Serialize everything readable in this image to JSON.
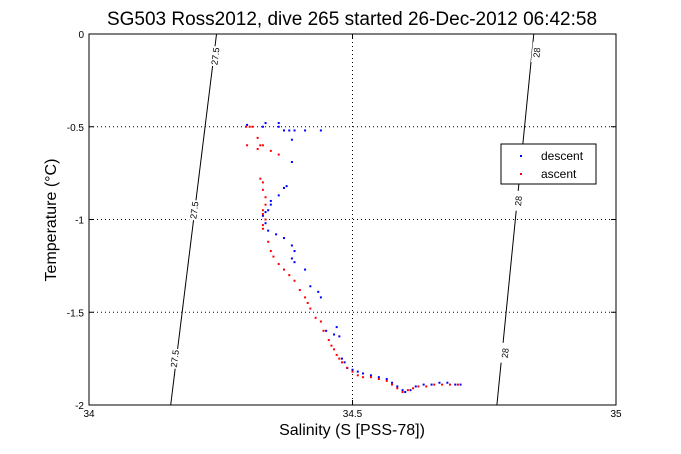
{
  "chart_data": {
    "type": "scatter",
    "title": "SG503 Ross2012, dive 265 started 26-Dec-2012 06:42:58",
    "xlabel": "Salinity (S [PSS-78])",
    "ylabel": "Temperature (°C)",
    "xlim": [
      34,
      35
    ],
    "ylim": [
      -2,
      0
    ],
    "xticks": [
      34,
      34.5,
      35
    ],
    "xtick_labels": [
      "34",
      "34.5",
      "35"
    ],
    "yticks": [
      0,
      -0.5,
      -1,
      -1.5,
      -2
    ],
    "ytick_labels": [
      "0",
      "-0.5",
      "-1",
      "-1.5",
      "-2"
    ],
    "grid": true,
    "legend_position": "right",
    "density_contours": [
      {
        "label": "27.5",
        "points": [
          [
            34.242,
            0
          ],
          [
            34.155,
            -2
          ]
        ],
        "label_positions": [
          [
            34.24,
            -0.12
          ],
          [
            34.2,
            -0.95
          ],
          [
            34.163,
            -1.75
          ]
        ]
      },
      {
        "label": "28",
        "points": [
          [
            34.844,
            0
          ],
          [
            34.774,
            -2
          ]
        ],
        "label_positions": [
          [
            34.85,
            -0.1
          ],
          [
            34.815,
            -0.9
          ],
          [
            34.79,
            -1.72
          ]
        ]
      }
    ],
    "series": [
      {
        "name": "descent",
        "color": "#0000ff",
        "points": [
          [
            34.3,
            -0.49
          ],
          [
            34.33,
            -0.5
          ],
          [
            34.335,
            -0.48
          ],
          [
            34.36,
            -0.48
          ],
          [
            34.36,
            -0.5
          ],
          [
            34.37,
            -0.52
          ],
          [
            34.38,
            -0.52
          ],
          [
            34.39,
            -0.52
          ],
          [
            34.41,
            -0.52
          ],
          [
            34.44,
            -0.52
          ],
          [
            34.385,
            -0.57
          ],
          [
            34.385,
            -0.69
          ],
          [
            34.37,
            -0.83
          ],
          [
            34.375,
            -0.82
          ],
          [
            34.36,
            -0.87
          ],
          [
            34.345,
            -0.9
          ],
          [
            34.345,
            -0.92
          ],
          [
            34.34,
            -0.95
          ],
          [
            34.335,
            -0.96
          ],
          [
            34.33,
            -0.98
          ],
          [
            34.335,
            -1.02
          ],
          [
            34.34,
            -1.06
          ],
          [
            34.355,
            -1.08
          ],
          [
            34.37,
            -1.1
          ],
          [
            34.385,
            -1.14
          ],
          [
            34.39,
            -1.17
          ],
          [
            34.385,
            -1.21
          ],
          [
            34.39,
            -1.23
          ],
          [
            34.41,
            -1.27
          ],
          [
            34.42,
            -1.36
          ],
          [
            34.435,
            -1.39
          ],
          [
            34.44,
            -1.42
          ],
          [
            34.45,
            -1.6
          ],
          [
            34.47,
            -1.58
          ],
          [
            34.465,
            -1.62
          ],
          [
            34.475,
            -1.63
          ],
          [
            34.48,
            -1.75
          ],
          [
            34.485,
            -1.77
          ],
          [
            34.49,
            -1.8
          ],
          [
            34.5,
            -1.81
          ],
          [
            34.51,
            -1.82
          ],
          [
            34.52,
            -1.83
          ],
          [
            34.535,
            -1.84
          ],
          [
            34.55,
            -1.85
          ],
          [
            34.565,
            -1.86
          ],
          [
            34.575,
            -1.88
          ],
          [
            34.585,
            -1.9
          ],
          [
            34.595,
            -1.92
          ],
          [
            34.6,
            -1.93
          ],
          [
            34.61,
            -1.92
          ],
          [
            34.62,
            -1.9
          ],
          [
            34.635,
            -1.89
          ],
          [
            34.65,
            -1.89
          ],
          [
            34.665,
            -1.88
          ],
          [
            34.68,
            -1.88
          ],
          [
            34.695,
            -1.89
          ],
          [
            34.705,
            -1.89
          ]
        ]
      },
      {
        "name": "ascent",
        "color": "#ff0000",
        "points": [
          [
            34.298,
            -0.5
          ],
          [
            34.305,
            -0.5
          ],
          [
            34.31,
            -0.5
          ],
          [
            34.3,
            -0.6
          ],
          [
            34.32,
            -0.56
          ],
          [
            34.325,
            -0.6
          ],
          [
            34.32,
            -0.62
          ],
          [
            34.33,
            -0.6
          ],
          [
            34.345,
            -0.63
          ],
          [
            34.36,
            -0.65
          ],
          [
            34.325,
            -0.78
          ],
          [
            34.33,
            -0.8
          ],
          [
            34.33,
            -0.84
          ],
          [
            34.335,
            -0.88
          ],
          [
            34.335,
            -0.92
          ],
          [
            34.33,
            -0.95
          ],
          [
            34.33,
            -0.97
          ],
          [
            34.335,
            -1.0
          ],
          [
            34.33,
            -1.03
          ],
          [
            34.33,
            -1.05
          ],
          [
            34.34,
            -1.12
          ],
          [
            34.345,
            -1.17
          ],
          [
            34.35,
            -1.2
          ],
          [
            34.36,
            -1.24
          ],
          [
            34.37,
            -1.27
          ],
          [
            34.38,
            -1.3
          ],
          [
            34.39,
            -1.33
          ],
          [
            34.4,
            -1.38
          ],
          [
            34.41,
            -1.42
          ],
          [
            34.415,
            -1.45
          ],
          [
            34.42,
            -1.48
          ],
          [
            34.43,
            -1.53
          ],
          [
            34.44,
            -1.55
          ],
          [
            34.445,
            -1.6
          ],
          [
            34.455,
            -1.65
          ],
          [
            34.46,
            -1.68
          ],
          [
            34.465,
            -1.7
          ],
          [
            34.47,
            -1.73
          ],
          [
            34.475,
            -1.75
          ],
          [
            34.48,
            -1.77
          ],
          [
            34.49,
            -1.8
          ],
          [
            34.5,
            -1.82
          ],
          [
            34.51,
            -1.84
          ],
          [
            34.52,
            -1.85
          ],
          [
            34.535,
            -1.85
          ],
          [
            34.55,
            -1.86
          ],
          [
            34.565,
            -1.87
          ],
          [
            34.575,
            -1.89
          ],
          [
            34.585,
            -1.91
          ],
          [
            34.595,
            -1.93
          ],
          [
            34.605,
            -1.92
          ],
          [
            34.615,
            -1.91
          ],
          [
            34.625,
            -1.9
          ],
          [
            34.64,
            -1.9
          ],
          [
            34.655,
            -1.89
          ],
          [
            34.67,
            -1.89
          ],
          [
            34.685,
            -1.89
          ],
          [
            34.7,
            -1.89
          ]
        ]
      }
    ]
  }
}
